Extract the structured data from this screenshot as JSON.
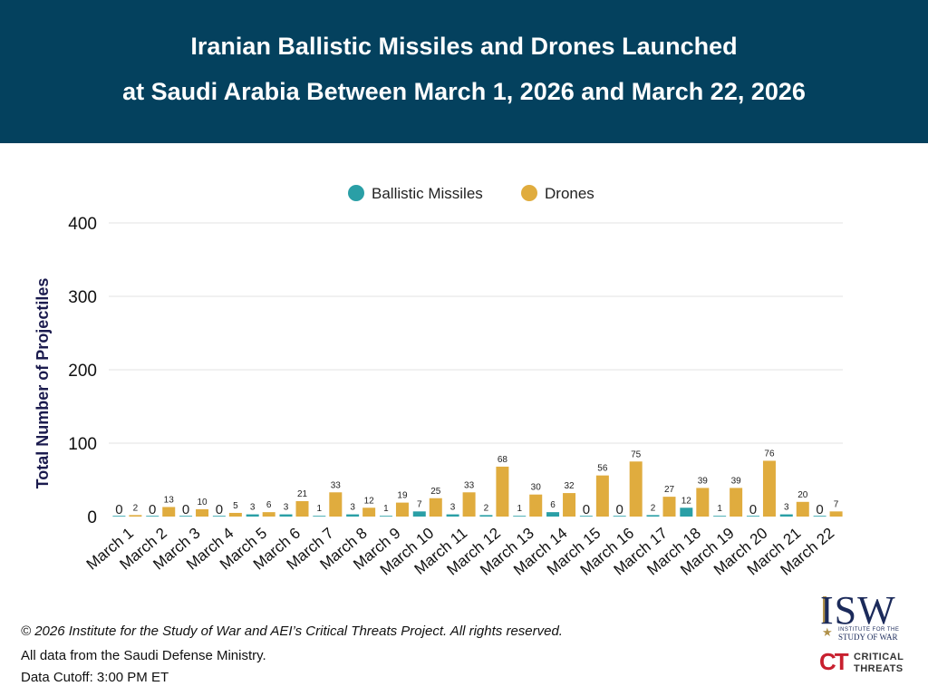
{
  "header": {
    "title_line1": "Iranian Ballistic Missiles and Drones Launched",
    "title_line2": "at Saudi Arabia Between March 1, 2026 and March 22, 2026"
  },
  "footer": {
    "copyright": "© 2026 Institute for the Study of War and AEI’s Critical Threats Project. All rights reserved.",
    "source": "All data from the Saudi Defense Ministry.",
    "cutoff": "Data Cutoff: 3:00 PM ET"
  },
  "logos": {
    "isw_name": "ISW",
    "isw_small1": "INSTITUTE FOR THE",
    "isw_small2": "STUDY OF WAR",
    "ct_mark": "CT",
    "ct_word1": "CRITICAL",
    "ct_word2": "THREATS"
  },
  "chart_data": {
    "type": "bar",
    "categories": [
      "March 1",
      "March 2",
      "March 3",
      "March 4",
      "March 5",
      "March 6",
      "March 7",
      "March 8",
      "March 9",
      "March 10",
      "March 11",
      "March 12",
      "March 13",
      "March 14",
      "March 15",
      "March 16",
      "March 17",
      "March 18",
      "March 19",
      "March 20",
      "March 21",
      "March 22"
    ],
    "series": [
      {
        "name": "Ballistic Missiles",
        "color": "#2a9fa6",
        "values": [
          0,
          0,
          0,
          0,
          3,
          3,
          1,
          3,
          1,
          7,
          3,
          2,
          1,
          6,
          0,
          0,
          2,
          12,
          1,
          0,
          3,
          0
        ]
      },
      {
        "name": "Drones",
        "color": "#e0ac3e",
        "values": [
          2,
          13,
          10,
          5,
          6,
          21,
          33,
          12,
          19,
          25,
          33,
          68,
          30,
          32,
          56,
          75,
          27,
          39,
          39,
          76,
          20,
          7
        ]
      }
    ],
    "ylabel": "Total Number of Projectiles",
    "xlabel": "",
    "ylim": [
      0,
      400
    ],
    "yticks": [
      0,
      100,
      200,
      300,
      400
    ],
    "grid": true,
    "legend": "top-center"
  }
}
